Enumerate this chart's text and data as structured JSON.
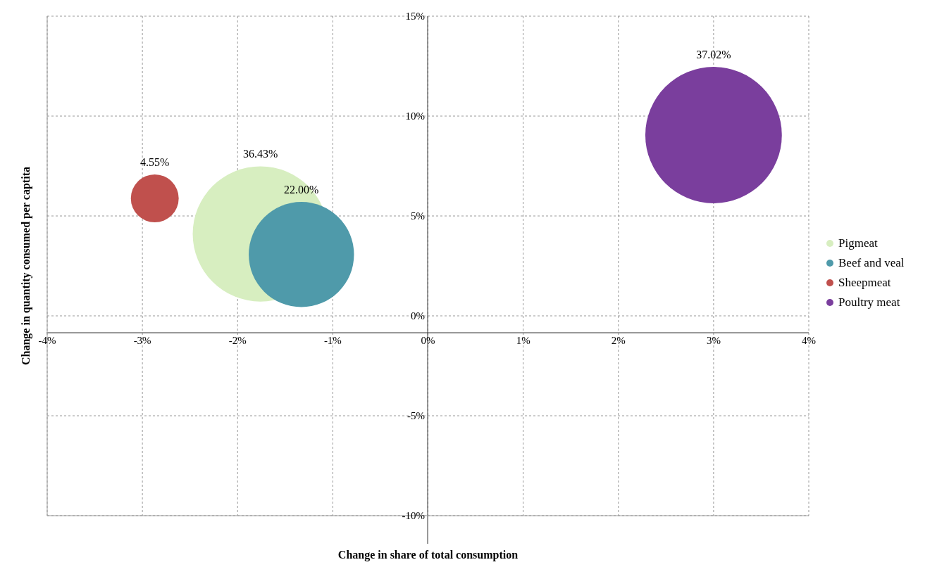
{
  "chart_data": {
    "type": "bubble",
    "xlabel": "Change in share of total consumption",
    "ylabel": "Change in quantity consumed per captita",
    "xlim": [
      -4,
      4
    ],
    "xticks": [
      {
        "value": -4,
        "label": "-4%"
      },
      {
        "value": -3,
        "label": "-3%"
      },
      {
        "value": -2,
        "label": "-2%"
      },
      {
        "value": -1,
        "label": "-1%"
      },
      {
        "value": 0,
        "label": "0%"
      },
      {
        "value": 1,
        "label": "1%"
      },
      {
        "value": 2,
        "label": "2%"
      },
      {
        "value": 3,
        "label": "3%"
      },
      {
        "value": 4,
        "label": "4%"
      }
    ],
    "ylim": [
      -10,
      15
    ],
    "yticks": [
      {
        "value": -10,
        "label": "-10%"
      },
      {
        "value": -5,
        "label": "-5%"
      },
      {
        "value": 0,
        "label": "0%"
      },
      {
        "value": 5,
        "label": "5%"
      },
      {
        "value": 10,
        "label": "10%"
      },
      {
        "value": 15,
        "label": "15%"
      }
    ],
    "grid": true,
    "legend": "right",
    "series": [
      {
        "name": "Pigmeat",
        "color": "#d7eec0",
        "x": [
          -1.76
        ],
        "values": [
          4.1
        ],
        "sizes": [
          36.43
        ],
        "value_labels": [
          "36.43%"
        ]
      },
      {
        "name": "Beef and veal",
        "color": "#4f9aaa",
        "x": [
          -1.33
        ],
        "values": [
          3.07
        ],
        "sizes": [
          22.0
        ],
        "value_labels": [
          "22.00%"
        ]
      },
      {
        "name": "Sheepmeat",
        "color": "#c0504d",
        "x": [
          -2.87
        ],
        "values": [
          5.88
        ],
        "sizes": [
          4.55
        ],
        "value_labels": [
          "4.55%"
        ]
      },
      {
        "name": "Poultry meat",
        "color": "#7a3e9d",
        "x": [
          3.0
        ],
        "values": [
          9.05
        ],
        "sizes": [
          37.02
        ],
        "value_labels": [
          "37.02%"
        ]
      }
    ]
  }
}
